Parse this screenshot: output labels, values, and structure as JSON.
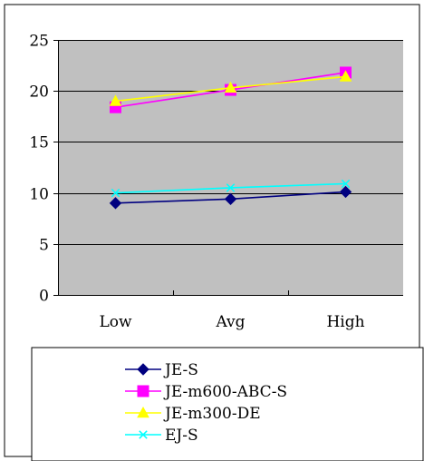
{
  "colors": {
    "plot_background": "#c0c0c0",
    "gridline": "#000000",
    "axis": "#000000"
  },
  "chart_data": {
    "type": "line",
    "categories": [
      "Low",
      "Avg",
      "High"
    ],
    "ylim": [
      0,
      25
    ],
    "y_ticks": [
      0,
      5,
      10,
      15,
      20,
      25
    ],
    "grid": true,
    "legend_position": "bottom",
    "series": [
      {
        "name": "JE-S",
        "values": [
          9.0,
          9.4,
          10.1
        ],
        "color": "#000080",
        "marker": "diamond"
      },
      {
        "name": "JE-m600-ABC-S",
        "values": [
          18.4,
          20.1,
          21.8
        ],
        "color": "#ff00ff",
        "marker": "square"
      },
      {
        "name": "JE-m300-DE",
        "values": [
          19.0,
          20.3,
          21.4
        ],
        "color": "#ffff00",
        "marker": "triangle"
      },
      {
        "name": "EJ-S",
        "values": [
          10.0,
          10.5,
          10.9
        ],
        "color": "#00ffff",
        "marker": "x"
      }
    ]
  }
}
